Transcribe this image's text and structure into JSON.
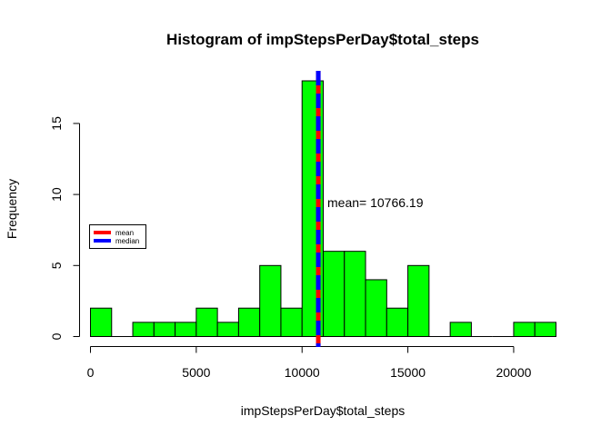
{
  "chart_data": {
    "type": "bar",
    "title": "Histogram of impStepsPerDay$total_steps",
    "xlabel": "impStepsPerDay$total_steps",
    "ylabel": "Frequency",
    "bin_width": 1000,
    "bins": [
      {
        "start": 0,
        "end": 1000,
        "count": 2
      },
      {
        "start": 1000,
        "end": 2000,
        "count": 0
      },
      {
        "start": 2000,
        "end": 3000,
        "count": 1
      },
      {
        "start": 3000,
        "end": 4000,
        "count": 1
      },
      {
        "start": 4000,
        "end": 5000,
        "count": 1
      },
      {
        "start": 5000,
        "end": 6000,
        "count": 2
      },
      {
        "start": 6000,
        "end": 7000,
        "count": 1
      },
      {
        "start": 7000,
        "end": 8000,
        "count": 2
      },
      {
        "start": 8000,
        "end": 9000,
        "count": 5
      },
      {
        "start": 9000,
        "end": 10000,
        "count": 2
      },
      {
        "start": 10000,
        "end": 11000,
        "count": 18
      },
      {
        "start": 11000,
        "end": 12000,
        "count": 6
      },
      {
        "start": 12000,
        "end": 13000,
        "count": 6
      },
      {
        "start": 13000,
        "end": 14000,
        "count": 4
      },
      {
        "start": 14000,
        "end": 15000,
        "count": 2
      },
      {
        "start": 15000,
        "end": 16000,
        "count": 5
      },
      {
        "start": 16000,
        "end": 17000,
        "count": 0
      },
      {
        "start": 17000,
        "end": 18000,
        "count": 1
      },
      {
        "start": 18000,
        "end": 19000,
        "count": 0
      },
      {
        "start": 19000,
        "end": 20000,
        "count": 0
      },
      {
        "start": 20000,
        "end": 21000,
        "count": 1
      },
      {
        "start": 21000,
        "end": 22000,
        "count": 1
      }
    ],
    "x_ticks": [
      0,
      5000,
      10000,
      15000,
      20000
    ],
    "y_ticks": [
      0,
      5,
      10,
      15
    ],
    "xlim": [
      0,
      22000
    ],
    "ylim": [
      0,
      18
    ],
    "bar_color": "#00ff00",
    "mean": 10766.19,
    "median": 10766.19,
    "mean_color": "#ff0000",
    "median_color": "#0000ff",
    "annotation": "mean= 10766.19",
    "legend": {
      "position": "left",
      "entries": [
        {
          "label": "mean",
          "color": "#ff0000"
        },
        {
          "label": "median",
          "color": "#0000ff"
        }
      ]
    }
  }
}
